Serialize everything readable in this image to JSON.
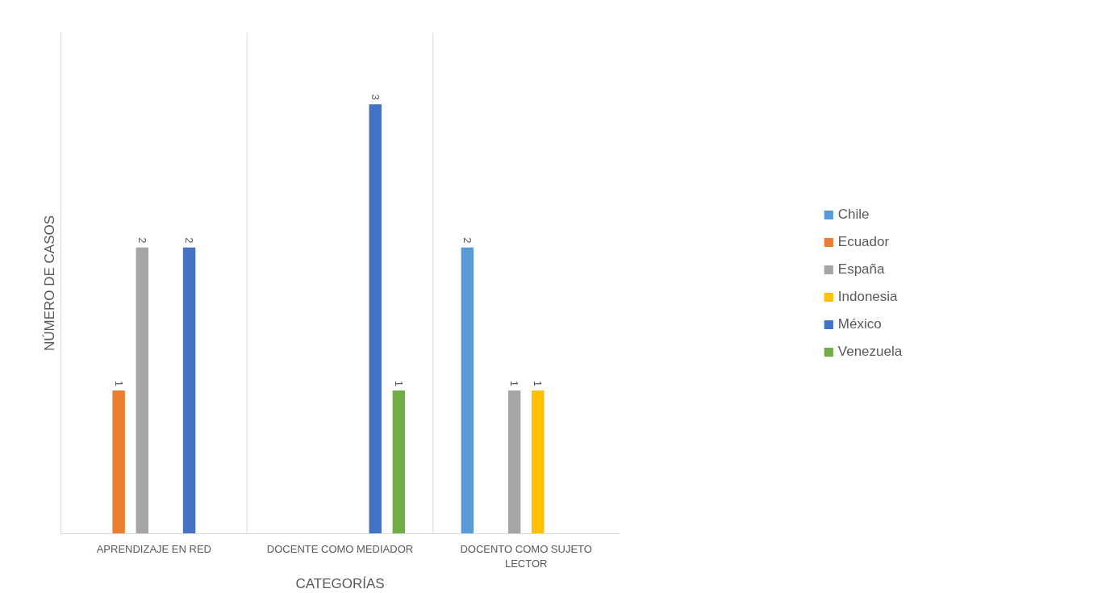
{
  "chart_data": {
    "type": "bar",
    "xlabel": "CATEGORÍAS",
    "ylabel": "NÚMERO DE CASOS",
    "categories": [
      "APRENDIZAJE EN RED",
      "DOCENTE COMO MEDIADOR",
      "DOCENTO COMO SUJETO LECTOR"
    ],
    "series": [
      {
        "name": "Chile",
        "color": "#5b9bd5",
        "values": [
          null,
          null,
          2
        ]
      },
      {
        "name": "Ecuador",
        "color": "#ed7d31",
        "values": [
          1,
          null,
          null
        ]
      },
      {
        "name": "España",
        "color": "#a5a5a5",
        "values": [
          2,
          null,
          1
        ]
      },
      {
        "name": "Indonesia",
        "color": "#ffc000",
        "values": [
          null,
          null,
          1
        ]
      },
      {
        "name": "México",
        "color": "#4472c4",
        "values": [
          2,
          3,
          null
        ]
      },
      {
        "name": "Venezuela",
        "color": "#70ad47",
        "values": [
          null,
          1,
          null
        ]
      }
    ],
    "ylim": [
      0,
      3.5
    ],
    "tick_labels": "x",
    "grid": "x",
    "legend": "right",
    "data_labels": true
  }
}
